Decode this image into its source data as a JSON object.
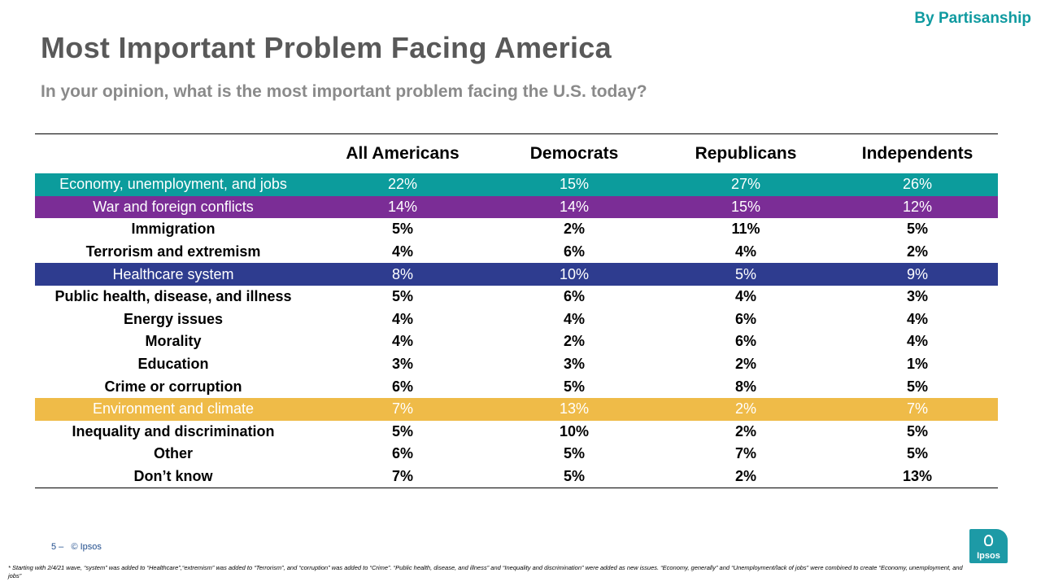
{
  "tag": "By Partisanship",
  "title": "Most Important Problem Facing America",
  "subtitle": "In your opinion, what is the most important problem facing the U.S. today?",
  "table": {
    "headers": [
      "",
      "All Americans",
      "Democrats",
      "Republicans",
      "Independents"
    ],
    "rows": [
      {
        "label": "Economy, unemployment, and jobs",
        "all": "22%",
        "dem": "15%",
        "rep": "27%",
        "ind": "26%"
      },
      {
        "label": "War and foreign conflicts",
        "all": "14%",
        "dem": "14%",
        "rep": "15%",
        "ind": "12%"
      },
      {
        "label": "Immigration",
        "all": "5%",
        "dem": "2%",
        "rep": "11%",
        "ind": "5%"
      },
      {
        "label": "Terrorism and extremism",
        "all": "4%",
        "dem": "6%",
        "rep": "4%",
        "ind": "2%"
      },
      {
        "label": "Healthcare system",
        "all": "8%",
        "dem": "10%",
        "rep": "5%",
        "ind": "9%"
      },
      {
        "label": "Public health, disease, and illness",
        "all": "5%",
        "dem": "6%",
        "rep": "4%",
        "ind": "3%"
      },
      {
        "label": "Energy issues",
        "all": "4%",
        "dem": "4%",
        "rep": "6%",
        "ind": "4%"
      },
      {
        "label": "Morality",
        "all": "4%",
        "dem": "2%",
        "rep": "6%",
        "ind": "4%"
      },
      {
        "label": "Education",
        "all": "3%",
        "dem": "3%",
        "rep": "2%",
        "ind": "1%"
      },
      {
        "label": "Crime or corruption",
        "all": "6%",
        "dem": "5%",
        "rep": "8%",
        "ind": "5%"
      },
      {
        "label": "Environment and climate",
        "all": "7%",
        "dem": "13%",
        "rep": "2%",
        "ind": "7%"
      },
      {
        "label": "Inequality and discrimination",
        "all": "5%",
        "dem": "10%",
        "rep": "2%",
        "ind": "5%"
      },
      {
        "label": "Other",
        "all": "6%",
        "dem": "5%",
        "rep": "7%",
        "ind": "5%"
      },
      {
        "label": "Don’t know",
        "all": "7%",
        "dem": "5%",
        "rep": "2%",
        "ind": "13%"
      }
    ]
  },
  "colors": {
    "teal": "#0c9c9c",
    "purple": "#7b2d96",
    "blue": "#2e3c8f",
    "gold": "#efbb48",
    "tag": "#0f9aa0"
  },
  "footer": {
    "page": "5 –",
    "copyright": "© Ipsos",
    "footnote": "* Starting with 2/4/21 wave, “system” was added to “Healthcare”,“extremism” was added to “Terrorism”, and “corruption” was added to “Crime”. “Public health, disease, and illness” and “Inequality and discrimination” were added as new issues. “Economy, generally” and “Unemployment/lack of jobs” were combined to create “Economy, unemployment, and jobs”",
    "logo": "Ipsos"
  }
}
